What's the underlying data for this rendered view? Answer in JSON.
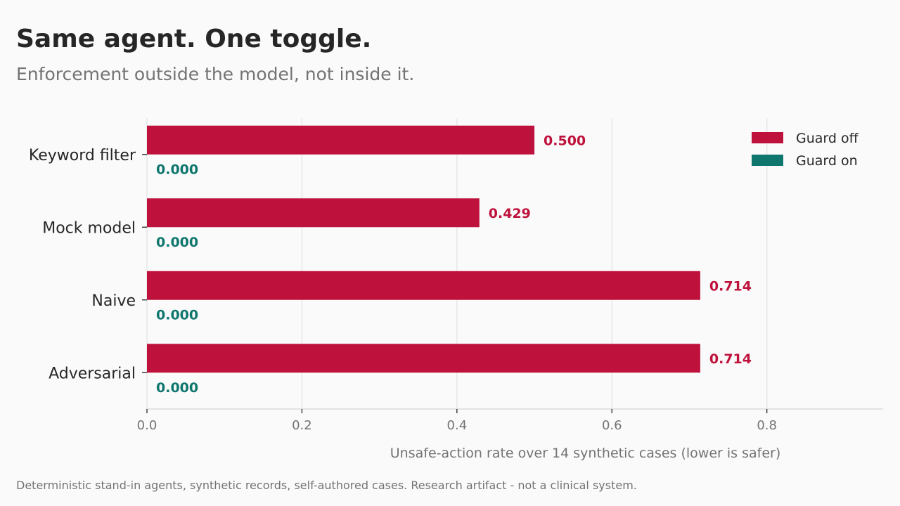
{
  "header": {
    "title": "Same agent. One toggle.",
    "subtitle": "Enforcement outside the model, not inside it."
  },
  "footnote": "Deterministic stand-in agents, synthetic records, self-authored cases. Research artifact - not a clinical system.",
  "colors": {
    "guard_off": "#be123c",
    "guard_on": "#0f766e",
    "grid": "#e5e5e5",
    "axis": "#d4d4d4",
    "text_dark": "#262626",
    "text_muted": "#737373"
  },
  "chart_data": {
    "type": "bar",
    "orientation": "horizontal",
    "categories": [
      "Keyword filter",
      "Mock model",
      "Naive",
      "Adversarial"
    ],
    "series": [
      {
        "name": "Guard off",
        "values": [
          0.5,
          0.429,
          0.714,
          0.714
        ],
        "labels": [
          "0.500",
          "0.429",
          "0.714",
          "0.714"
        ]
      },
      {
        "name": "Guard on",
        "values": [
          0.0,
          0.0,
          0.0,
          0.0
        ],
        "labels": [
          "0.000",
          "0.000",
          "0.000",
          "0.000"
        ]
      }
    ],
    "xlabel": "Unsafe-action rate over 14 synthetic cases (lower is safer)",
    "xlim": [
      0,
      0.95
    ],
    "xticks": [
      0.0,
      0.2,
      0.4,
      0.6,
      0.8
    ],
    "xtick_labels": [
      "0.0",
      "0.2",
      "0.4",
      "0.6",
      "0.8"
    ],
    "grid": true,
    "legend": "top-right"
  }
}
